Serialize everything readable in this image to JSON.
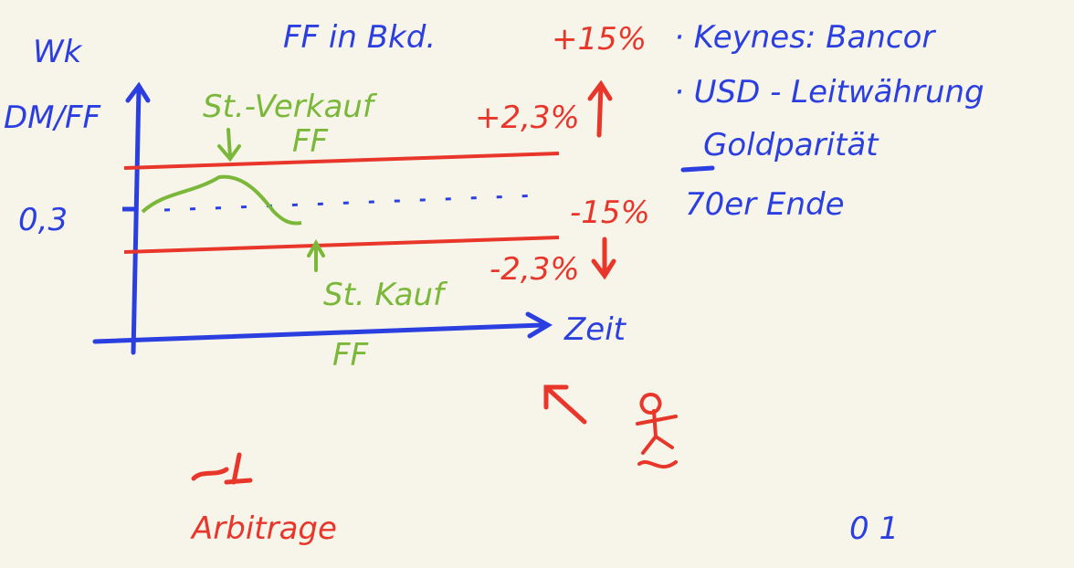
{
  "header": {
    "title": "FF in Bkd.",
    "title_change": "+15%"
  },
  "notes": [
    "· Keynes: Bancor",
    "· USD - Leitwährung",
    "Goldparität",
    "70er Ende"
  ],
  "diagram": {
    "y_axis_title": "Wk",
    "y_axis_unit": "DM/FF",
    "y_value": "0,3",
    "x_axis_label": "Zeit",
    "x_axis_currency": "FF",
    "upper_band": "+2,3%",
    "center_change": "-15%",
    "lower_band": "-2,3%",
    "sell_label": "St.-Verkauf",
    "sell_currency": "FF",
    "buy_label": "St. Kauf"
  },
  "footer": {
    "arbitrage": "Arbitrage",
    "page": "0 1"
  }
}
